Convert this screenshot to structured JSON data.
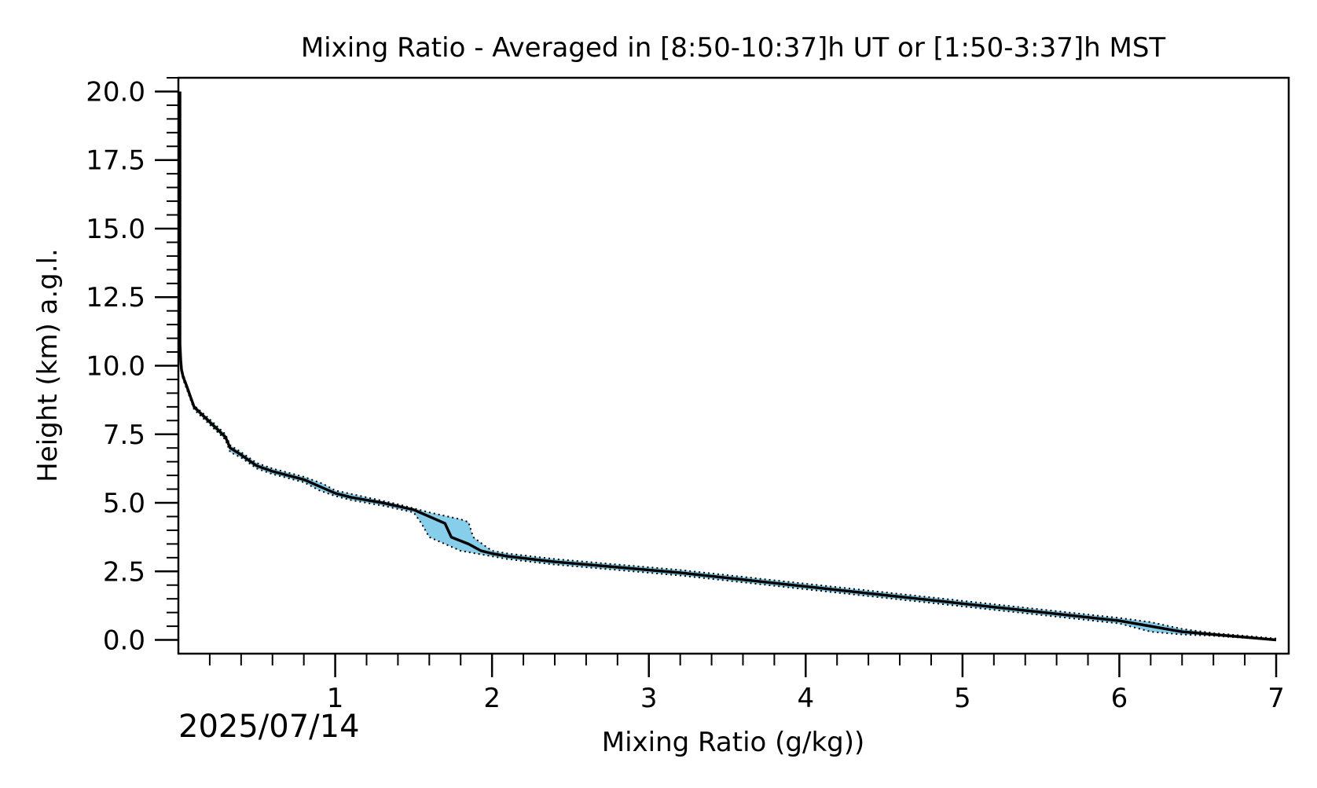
{
  "chart_data": {
    "type": "line",
    "title": "Mixing Ratio - Averaged in [8:50-10:37]h UT or [1:50-3:37]h MST",
    "xlabel": "Mixing Ratio (g/kg))",
    "ylabel": "Height (km) a.g.l.",
    "date_text": "2025/07/14",
    "xlim": [
      0,
      7.08
    ],
    "ylim": [
      -0.5,
      20.5
    ],
    "x_ticks": [
      1,
      2,
      3,
      4,
      5,
      6,
      7
    ],
    "x_tick_labels": [
      "1",
      "2",
      "3",
      "4",
      "5",
      "6",
      "7"
    ],
    "y_ticks": [
      0,
      2.5,
      5,
      7.5,
      10,
      12.5,
      15,
      17.5,
      20
    ],
    "y_tick_labels": [
      "0.0",
      "2.5",
      "5.0",
      "7.5",
      "10.0",
      "12.5",
      "15.0",
      "17.5",
      "20.0"
    ],
    "x_minor_step": 0.2,
    "y_minor_step": 0.5,
    "grid": false,
    "legend": false,
    "colors": {
      "band": "#87ceeb",
      "mean_line": "#000000",
      "bound_line": "#000000"
    },
    "series": [
      {
        "role": "mean",
        "x": [
          7.0,
          6.6,
          6.4,
          6.2,
          6.0,
          5.6,
          5.2,
          4.8,
          4.4,
          4.0,
          3.6,
          3.2,
          2.8,
          2.4,
          2.1,
          2.0,
          1.93,
          1.85,
          1.74,
          1.7,
          1.5,
          1.3,
          1.1,
          1.0,
          0.92,
          0.8,
          0.6,
          0.5,
          0.4,
          0.33,
          0.3,
          0.2,
          0.1,
          0.05,
          0.03,
          0.02,
          0.015,
          0.01,
          0.01
        ],
        "y": [
          0.0,
          0.2,
          0.3,
          0.5,
          0.7,
          0.95,
          1.2,
          1.45,
          1.7,
          1.95,
          2.2,
          2.45,
          2.65,
          2.85,
          3.05,
          3.15,
          3.25,
          3.5,
          3.75,
          4.25,
          4.75,
          5.0,
          5.2,
          5.35,
          5.55,
          5.85,
          6.15,
          6.35,
          6.75,
          7.0,
          7.4,
          7.95,
          8.5,
          9.3,
          9.6,
          9.85,
          10.2,
          10.8,
          20.0
        ]
      },
      {
        "role": "lower",
        "x": [
          7.0,
          6.6,
          6.4,
          6.2,
          6.0,
          5.6,
          5.2,
          4.8,
          4.4,
          4.0,
          3.6,
          3.2,
          2.8,
          2.4,
          2.1,
          2.0,
          1.9,
          1.8,
          1.6,
          1.55,
          1.5,
          1.3,
          1.1,
          1.0,
          0.9,
          0.8,
          0.6,
          0.5,
          0.4,
          0.33,
          0.3,
          0.2,
          0.1,
          0.05,
          0.03,
          0.02,
          0.015,
          0.01,
          0.01
        ],
        "y": [
          0.0,
          0.15,
          0.2,
          0.3,
          0.6,
          0.85,
          1.1,
          1.35,
          1.6,
          1.85,
          2.1,
          2.35,
          2.55,
          2.75,
          2.95,
          3.05,
          3.15,
          3.25,
          3.75,
          4.25,
          4.65,
          4.9,
          5.1,
          5.25,
          5.45,
          5.75,
          6.05,
          6.25,
          6.65,
          6.85,
          7.3,
          7.85,
          8.4,
          9.2,
          9.5,
          9.8,
          10.1,
          10.8,
          20.0
        ]
      },
      {
        "role": "upper",
        "x": [
          7.0,
          6.6,
          6.4,
          6.2,
          6.0,
          5.6,
          5.2,
          4.8,
          4.4,
          4.0,
          3.6,
          3.2,
          2.8,
          2.4,
          2.1,
          2.0,
          1.95,
          1.88,
          1.85,
          1.8,
          1.6,
          1.4,
          1.2,
          1.0,
          0.92,
          0.8,
          0.6,
          0.5,
          0.4,
          0.33,
          0.3,
          0.2,
          0.1,
          0.05,
          0.03,
          0.02,
          0.015,
          0.01,
          0.01
        ],
        "y": [
          0.05,
          0.25,
          0.4,
          0.65,
          0.8,
          1.05,
          1.3,
          1.55,
          1.8,
          2.05,
          2.3,
          2.55,
          2.75,
          2.95,
          3.15,
          3.25,
          3.45,
          3.75,
          4.3,
          4.4,
          4.65,
          4.95,
          5.2,
          5.45,
          5.7,
          5.95,
          6.25,
          6.45,
          6.85,
          7.1,
          7.5,
          8.05,
          8.55,
          9.35,
          9.7,
          9.9,
          10.3,
          10.8,
          20.0
        ]
      }
    ]
  }
}
